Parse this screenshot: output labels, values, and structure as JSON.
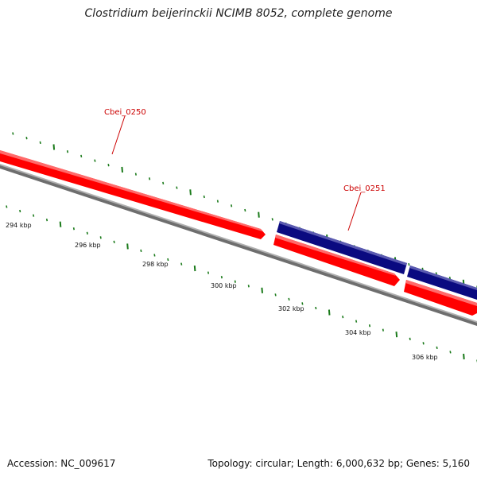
{
  "title": "Clostridium beijerinckii NCIMB 8052, complete genome",
  "footer": {
    "accession": "Accession: NC_009617",
    "summary": "Topology: circular; Length: 6,000,632 bp; Genes: 5,160"
  },
  "genes": [
    {
      "label": "Cbei_0250"
    },
    {
      "label": "Cbei_0251"
    }
  ],
  "kbp_labels": [
    "294 kbp",
    "296 kbp",
    "298 kbp",
    "300 kbp",
    "302 kbp",
    "304 kbp",
    "306 kbp"
  ],
  "colors": {
    "forward_feature": "#ff0000",
    "reverse_feature": "#0a0a80",
    "backbone": "#808080",
    "tick": "#1a7a1a",
    "gene_label": "#cc0000"
  }
}
